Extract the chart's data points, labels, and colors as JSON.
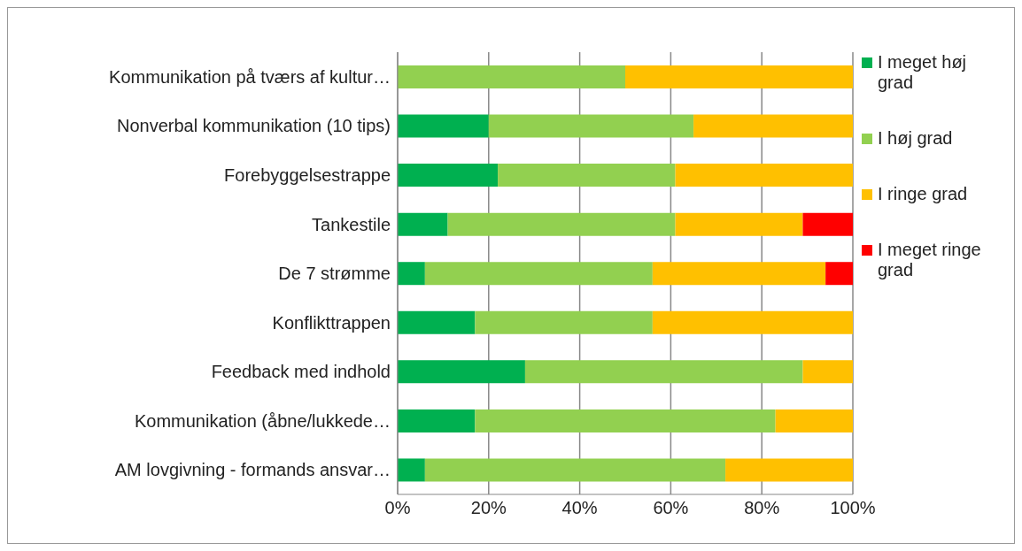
{
  "chart_data": {
    "type": "bar",
    "orientation": "horizontal",
    "stacked": true,
    "categories": [
      "Kommunikation på tværs af kultur…",
      "Nonverbal kommunikation (10 tips)",
      "Forebyggelsestrappe",
      "Tankestile",
      "De 7 strømme",
      "Konflikttrappen",
      "Feedback med indhold",
      "Kommunikation (åbne/lukkede…",
      "AM lovgivning - formands ansvar…"
    ],
    "series": [
      {
        "name": "I meget høj grad",
        "color": "#00b050",
        "values": [
          0,
          20,
          22,
          11,
          6,
          17,
          28,
          17,
          6
        ]
      },
      {
        "name": "I høj grad",
        "color": "#92d050",
        "values": [
          50,
          45,
          39,
          50,
          50,
          39,
          61,
          66,
          66
        ]
      },
      {
        "name": "I ringe grad",
        "color": "#ffc000",
        "values": [
          50,
          35,
          39,
          28,
          38,
          44,
          11,
          17,
          28
        ]
      },
      {
        "name": "I meget ringe grad",
        "color": "#ff0000",
        "values": [
          0,
          0,
          0,
          11,
          6,
          0,
          0,
          0,
          0
        ]
      }
    ],
    "xlim": [
      0,
      100
    ],
    "xticks": [
      {
        "value": 0,
        "label": "0%"
      },
      {
        "value": 20,
        "label": "20%"
      },
      {
        "value": 40,
        "label": "40%"
      },
      {
        "value": 60,
        "label": "60%"
      },
      {
        "value": 80,
        "label": "80%"
      },
      {
        "value": 100,
        "label": "100%"
      }
    ],
    "grid": "x",
    "legend": "right"
  }
}
